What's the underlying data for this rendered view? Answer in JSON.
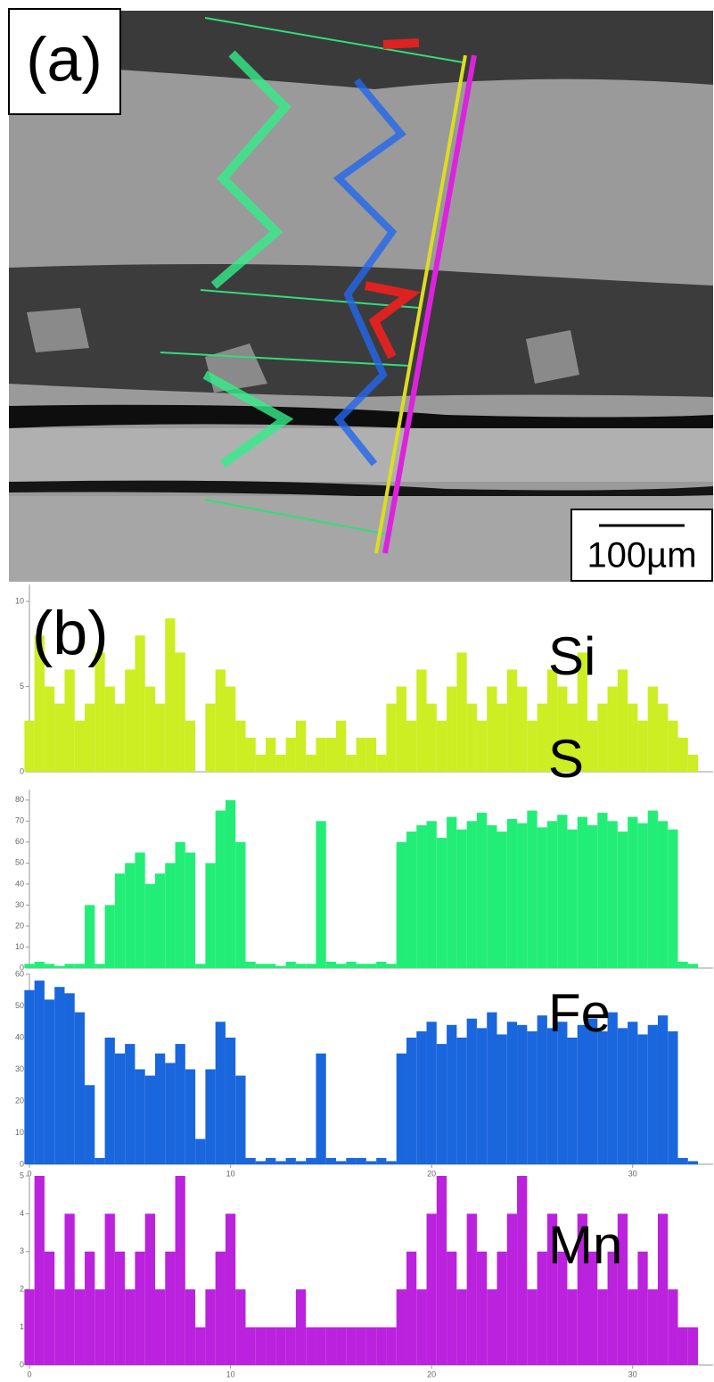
{
  "panel_a": {
    "label": "(a)",
    "scale_bar": "100µm"
  },
  "panel_b_label": "(b)",
  "chart_data": [
    {
      "type": "bar",
      "element": "Si",
      "color": "#ccee22",
      "xlim": [
        0,
        34
      ],
      "ylim": [
        0,
        11
      ],
      "yticks": [
        0,
        5,
        10
      ],
      "x": [
        0,
        0.5,
        1,
        1.5,
        2,
        2.5,
        3,
        3.5,
        4,
        4.5,
        5,
        5.5,
        6,
        6.5,
        7,
        7.5,
        8,
        8.5,
        9,
        9.5,
        10,
        10.5,
        11,
        11.5,
        12,
        12.5,
        13,
        13.5,
        14,
        14.5,
        15,
        15.5,
        16,
        16.5,
        17,
        17.5,
        18,
        18.5,
        19,
        19.5,
        20,
        20.5,
        21,
        21.5,
        22,
        22.5,
        23,
        23.5,
        24,
        24.5,
        25,
        25.5,
        26,
        26.5,
        27,
        27.5,
        28,
        28.5,
        29,
        29.5,
        30,
        30.5,
        31,
        31.5,
        32,
        32.5,
        33
      ],
      "values": [
        3,
        8,
        5,
        4,
        6,
        3,
        4,
        7,
        5,
        4,
        6,
        8,
        5,
        4,
        9,
        7,
        3,
        0,
        4,
        6,
        5,
        3,
        2,
        1,
        2,
        1,
        2,
        3,
        1,
        2,
        2,
        3,
        1,
        2,
        2,
        1,
        4,
        5,
        3,
        6,
        4,
        3,
        5,
        7,
        4,
        3,
        5,
        4,
        6,
        5,
        3,
        4,
        6,
        5,
        4,
        7,
        3,
        4,
        5,
        6,
        4,
        3,
        5,
        4,
        3,
        2,
        1
      ]
    },
    {
      "type": "bar",
      "element": "S",
      "color": "#22ee77",
      "xlim": [
        0,
        34
      ],
      "ylim": [
        0,
        85
      ],
      "yticks": [
        0,
        10,
        20,
        30,
        40,
        50,
        60,
        70,
        80
      ],
      "x": [
        0,
        0.5,
        1,
        1.5,
        2,
        2.5,
        3,
        3.5,
        4,
        4.5,
        5,
        5.5,
        6,
        6.5,
        7,
        7.5,
        8,
        8.5,
        9,
        9.5,
        10,
        10.5,
        11,
        11.5,
        12,
        12.5,
        13,
        13.5,
        14,
        14.5,
        15,
        15.5,
        16,
        16.5,
        17,
        17.5,
        18,
        18.5,
        19,
        19.5,
        20,
        20.5,
        21,
        21.5,
        22,
        22.5,
        23,
        23.5,
        24,
        24.5,
        25,
        25.5,
        26,
        26.5,
        27,
        27.5,
        28,
        28.5,
        29,
        29.5,
        30,
        30.5,
        31,
        31.5,
        32,
        32.5,
        33
      ],
      "values": [
        2,
        3,
        2,
        1,
        2,
        2,
        30,
        2,
        30,
        45,
        50,
        55,
        40,
        45,
        50,
        60,
        55,
        2,
        50,
        75,
        80,
        60,
        3,
        2,
        2,
        1,
        3,
        2,
        2,
        70,
        3,
        2,
        3,
        2,
        2,
        3,
        2,
        60,
        65,
        68,
        70,
        62,
        72,
        66,
        70,
        74,
        68,
        65,
        71,
        69,
        75,
        67,
        70,
        73,
        66,
        72,
        68,
        74,
        70,
        65,
        72,
        69,
        75,
        70,
        66,
        3,
        2
      ]
    },
    {
      "type": "bar",
      "element": "Fe",
      "color": "#1a66dd",
      "xlim": [
        0,
        34
      ],
      "ylim": [
        0,
        60
      ],
      "yticks": [
        0,
        10,
        20,
        30,
        40,
        50,
        60
      ],
      "xticks": [
        0,
        10,
        20,
        30
      ],
      "x": [
        0,
        0.5,
        1,
        1.5,
        2,
        2.5,
        3,
        3.5,
        4,
        4.5,
        5,
        5.5,
        6,
        6.5,
        7,
        7.5,
        8,
        8.5,
        9,
        9.5,
        10,
        10.5,
        11,
        11.5,
        12,
        12.5,
        13,
        13.5,
        14,
        14.5,
        15,
        15.5,
        16,
        16.5,
        17,
        17.5,
        18,
        18.5,
        19,
        19.5,
        20,
        20.5,
        21,
        21.5,
        22,
        22.5,
        23,
        23.5,
        24,
        24.5,
        25,
        25.5,
        26,
        26.5,
        27,
        27.5,
        28,
        28.5,
        29,
        29.5,
        30,
        30.5,
        31,
        31.5,
        32,
        32.5,
        33
      ],
      "values": [
        55,
        58,
        52,
        56,
        54,
        48,
        25,
        2,
        40,
        35,
        38,
        30,
        28,
        35,
        32,
        38,
        30,
        8,
        30,
        45,
        40,
        28,
        2,
        1,
        2,
        1,
        2,
        1,
        2,
        35,
        2,
        1,
        2,
        2,
        1,
        2,
        1,
        35,
        40,
        42,
        45,
        38,
        44,
        40,
        46,
        43,
        48,
        41,
        45,
        44,
        42,
        47,
        43,
        45,
        40,
        44,
        46,
        42,
        48,
        43,
        45,
        41,
        44,
        47,
        42,
        2,
        1
      ]
    },
    {
      "type": "bar",
      "element": "Mn",
      "color": "#bb22dd",
      "xlim": [
        0,
        34
      ],
      "ylim": [
        0,
        5
      ],
      "yticks": [
        0,
        1,
        2,
        3,
        4,
        5
      ],
      "xticks": [
        0,
        10,
        20,
        30
      ],
      "x": [
        0,
        0.5,
        1,
        1.5,
        2,
        2.5,
        3,
        3.5,
        4,
        4.5,
        5,
        5.5,
        6,
        6.5,
        7,
        7.5,
        8,
        8.5,
        9,
        9.5,
        10,
        10.5,
        11,
        11.5,
        12,
        12.5,
        13,
        13.5,
        14,
        14.5,
        15,
        15.5,
        16,
        16.5,
        17,
        17.5,
        18,
        18.5,
        19,
        19.5,
        20,
        20.5,
        21,
        21.5,
        22,
        22.5,
        23,
        23.5,
        24,
        24.5,
        25,
        25.5,
        26,
        26.5,
        27,
        27.5,
        28,
        28.5,
        29,
        29.5,
        30,
        30.5,
        31,
        31.5,
        32,
        32.5,
        33
      ],
      "values": [
        2,
        5,
        3,
        2,
        4,
        2,
        3,
        2,
        4,
        3,
        2,
        3,
        4,
        2,
        3,
        5,
        2,
        1,
        2,
        3,
        4,
        2,
        1,
        1,
        1,
        1,
        1,
        2,
        1,
        1,
        1,
        1,
        1,
        1,
        1,
        1,
        1,
        2,
        3,
        2,
        4,
        5,
        3,
        2,
        4,
        3,
        2,
        3,
        4,
        5,
        2,
        3,
        4,
        3,
        2,
        4,
        3,
        2,
        3,
        4,
        2,
        3,
        2,
        4,
        2,
        1,
        1
      ]
    }
  ]
}
